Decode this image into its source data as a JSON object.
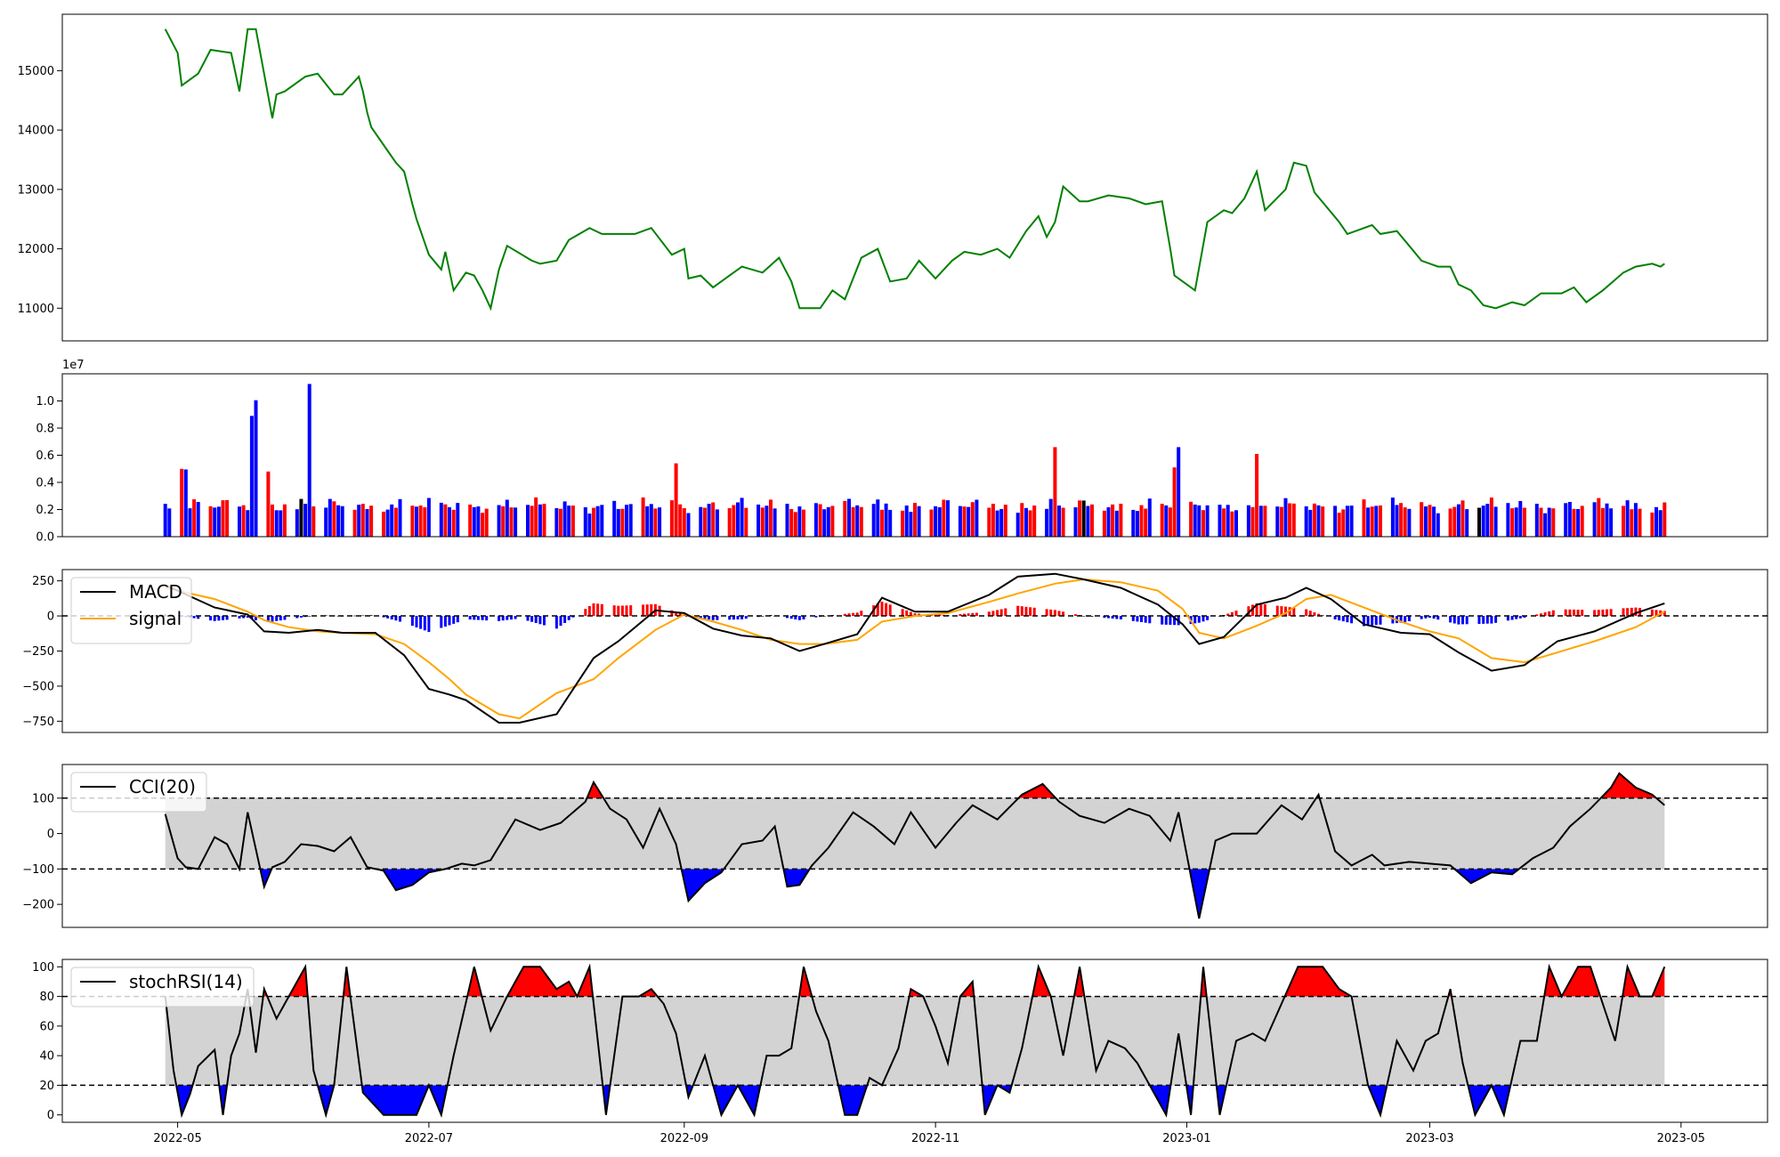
{
  "chart_data": [
    {
      "type": "line",
      "panel": "price",
      "color": "#008000",
      "ylim": [
        10450,
        15950
      ],
      "yticks": [
        11000,
        12000,
        13000,
        14000,
        15000
      ],
      "x": [
        "2022-04-28",
        "2022-05-01",
        "2022-05-02",
        "2022-05-06",
        "2022-05-09",
        "2022-05-14",
        "2022-05-16",
        "2022-05-18",
        "2022-05-20",
        "2022-05-24",
        "2022-05-25",
        "2022-05-27",
        "2022-06-01",
        "2022-06-04",
        "2022-06-08",
        "2022-06-10",
        "2022-06-14",
        "2022-06-15",
        "2022-06-16",
        "2022-06-17",
        "2022-06-21",
        "2022-06-23",
        "2022-06-25",
        "2022-06-27",
        "2022-06-28",
        "2022-07-01",
        "2022-07-04",
        "2022-07-05",
        "2022-07-07",
        "2022-07-10",
        "2022-07-12",
        "2022-07-14",
        "2022-07-16",
        "2022-07-18",
        "2022-07-20",
        "2022-07-26",
        "2022-07-28",
        "2022-08-01",
        "2022-08-04",
        "2022-08-09",
        "2022-08-12",
        "2022-08-16",
        "2022-08-20",
        "2022-08-24",
        "2022-08-29",
        "2022-09-01",
        "2022-09-02",
        "2022-09-05",
        "2022-09-08",
        "2022-09-12",
        "2022-09-15",
        "2022-09-20",
        "2022-09-24",
        "2022-09-27",
        "2022-09-29",
        "2022-10-04",
        "2022-10-07",
        "2022-10-10",
        "2022-10-14",
        "2022-10-18",
        "2022-10-21",
        "2022-10-25",
        "2022-10-28",
        "2022-11-01",
        "2022-11-05",
        "2022-11-08",
        "2022-11-12",
        "2022-11-16",
        "2022-11-19",
        "2022-11-23",
        "2022-11-26",
        "2022-11-28",
        "2022-11-30",
        "2022-12-02",
        "2022-12-06",
        "2022-12-08",
        "2022-12-13",
        "2022-12-18",
        "2022-12-22",
        "2022-12-26",
        "2022-12-28",
        "2022-12-29",
        "2023-01-03",
        "2023-01-06",
        "2023-01-10",
        "2023-01-12",
        "2023-01-15",
        "2023-01-18",
        "2023-01-20",
        "2023-01-25",
        "2023-01-27",
        "2023-01-30",
        "2023-02-01",
        "2023-02-07",
        "2023-02-08",
        "2023-02-09",
        "2023-02-15",
        "2023-02-17",
        "2023-02-21",
        "2023-02-24",
        "2023-02-27",
        "2023-03-03",
        "2023-03-06",
        "2023-03-08",
        "2023-03-11",
        "2023-03-14",
        "2023-03-17",
        "2023-03-21",
        "2023-03-24",
        "2023-03-28",
        "2023-04-02",
        "2023-04-05",
        "2023-04-08",
        "2023-04-12",
        "2023-04-17",
        "2023-04-20",
        "2023-04-24",
        "2023-04-26",
        "2023-04-27"
      ],
      "values": [
        15700,
        15300,
        14750,
        14950,
        15350,
        15300,
        14650,
        15700,
        15700,
        14200,
        14600,
        14650,
        14900,
        14950,
        14600,
        14600,
        14900,
        14650,
        14300,
        14050,
        13650,
        13450,
        13300,
        12750,
        12500,
        11900,
        11650,
        11950,
        11300,
        11600,
        11550,
        11300,
        11000,
        11650,
        12050,
        11800,
        11750,
        11800,
        12150,
        12350,
        12250,
        12250,
        12250,
        12350,
        11900,
        12000,
        11500,
        11550,
        11350,
        11550,
        11700,
        11600,
        11850,
        11450,
        11000,
        11000,
        11300,
        11150,
        11850,
        12000,
        11450,
        11500,
        11800,
        11500,
        11800,
        11950,
        11900,
        12000,
        11850,
        12300,
        12550,
        12200,
        12450,
        13050,
        12800,
        12800,
        12900,
        12850,
        12750,
        12800,
        12000,
        11550,
        11300,
        12450,
        12650,
        12600,
        12850,
        13300,
        12650,
        13000,
        13450,
        13400,
        12950,
        12450,
        12350,
        12250,
        12400,
        12250,
        12300,
        12050,
        11800,
        11700,
        11700,
        11400,
        11300,
        11050,
        11000,
        11100,
        11050,
        11250,
        11250,
        11350,
        11100,
        11300,
        11600,
        11700,
        11750,
        11700,
        11750
      ]
    },
    {
      "type": "bar",
      "panel": "volume",
      "ylim": [
        0,
        12000000
      ],
      "yticks": [
        0.0,
        0.2,
        0.4,
        0.6,
        0.8,
        1.0
      ],
      "ytick_labels": [
        "0.0",
        "0.2",
        "0.4",
        "0.6",
        "0.8",
        "1.0"
      ],
      "offset_label": "1e7",
      "colors": {
        "up": "#ff0000",
        "down": "#0000ff",
        "flat": "#000000"
      },
      "start": "2022-04-28",
      "end": "2023-04-27",
      "spikes": [
        {
          "x": "2022-05-02",
          "value": 5000000,
          "color": "up"
        },
        {
          "x": "2022-05-03",
          "value": 4950000,
          "color": "down"
        },
        {
          "x": "2022-05-19",
          "value": 8900000,
          "color": "down"
        },
        {
          "x": "2022-05-20",
          "value": 10050000,
          "color": "down"
        },
        {
          "x": "2022-05-23",
          "value": 4800000,
          "color": "up"
        },
        {
          "x": "2022-06-02",
          "value": 11250000,
          "color": "down"
        },
        {
          "x": "2022-08-30",
          "value": 5400000,
          "color": "up"
        },
        {
          "x": "2022-11-30",
          "value": 6600000,
          "color": "up"
        },
        {
          "x": "2022-12-29",
          "value": 5100000,
          "color": "up"
        },
        {
          "x": "2022-12-30",
          "value": 6600000,
          "color": "down"
        },
        {
          "x": "2023-01-18",
          "value": 6100000,
          "color": "up"
        }
      ]
    },
    {
      "type": "line",
      "panel": "macd",
      "ylim": [
        -830,
        330
      ],
      "yticks": [
        -750,
        -500,
        -250,
        0,
        250
      ],
      "ytick_labels": [
        "−750",
        "−500",
        "−250",
        "0",
        "250"
      ],
      "legend": [
        {
          "name": "MACD",
          "color": "#000000"
        },
        {
          "name": "signal",
          "color": "#ffa500"
        }
      ],
      "hist_colors": {
        "pos": "#ff0000",
        "neg": "#0000ff",
        "flat": "#000000"
      },
      "x": [
        "2022-04-28",
        "2022-05-10",
        "2022-05-18",
        "2022-05-22",
        "2022-05-28",
        "2022-06-04",
        "2022-06-10",
        "2022-06-18",
        "2022-06-25",
        "2022-07-01",
        "2022-07-06",
        "2022-07-10",
        "2022-07-18",
        "2022-07-23",
        "2022-08-01",
        "2022-08-10",
        "2022-08-16",
        "2022-08-25",
        "2022-09-01",
        "2022-09-08",
        "2022-09-15",
        "2022-09-22",
        "2022-09-29",
        "2022-10-05",
        "2022-10-13",
        "2022-10-19",
        "2022-10-27",
        "2022-11-04",
        "2022-11-14",
        "2022-11-21",
        "2022-11-30",
        "2022-12-07",
        "2022-12-16",
        "2022-12-25",
        "2022-12-31",
        "2023-01-04",
        "2023-01-10",
        "2023-01-18",
        "2023-01-25",
        "2023-01-30",
        "2023-02-05",
        "2023-02-13",
        "2023-02-22",
        "2023-03-01",
        "2023-03-08",
        "2023-03-16",
        "2023-03-24",
        "2023-04-01",
        "2023-04-10",
        "2023-04-20",
        "2023-04-27"
      ],
      "series": [
        {
          "name": "MACD",
          "values": [
            220,
            60,
            10,
            -110,
            -120,
            -100,
            -120,
            -120,
            -280,
            -520,
            -560,
            -600,
            -760,
            -760,
            -700,
            -300,
            -180,
            40,
            20,
            -90,
            -140,
            -160,
            -250,
            -200,
            -130,
            130,
            30,
            30,
            150,
            280,
            300,
            260,
            200,
            80,
            -60,
            -200,
            -150,
            80,
            130,
            200,
            120,
            -60,
            -120,
            -130,
            -260,
            -390,
            -350,
            -180,
            -110,
            20,
            90
          ]
        },
        {
          "name": "signal",
          "values": [
            200,
            120,
            30,
            -30,
            -80,
            -110,
            -120,
            -130,
            -200,
            -330,
            -450,
            -560,
            -700,
            -730,
            -550,
            -450,
            -300,
            -100,
            10,
            -40,
            -100,
            -170,
            -200,
            -200,
            -170,
            -40,
            0,
            20,
            100,
            160,
            230,
            260,
            240,
            180,
            50,
            -120,
            -160,
            -70,
            20,
            120,
            150,
            60,
            -40,
            -110,
            -160,
            -300,
            -330,
            -260,
            -180,
            -80,
            30
          ]
        }
      ]
    },
    {
      "type": "area",
      "panel": "cci",
      "ylim": [
        -265,
        195
      ],
      "yticks": [
        -200,
        -100,
        0,
        100
      ],
      "ytick_labels": [
        "−200",
        "−100",
        "0",
        "100"
      ],
      "thresholds": [
        100,
        -100
      ],
      "legend": [
        {
          "name": "CCI(20)",
          "color": "#000000"
        }
      ],
      "fill_colors": {
        "over": "#ff0000",
        "under": "#0000ff",
        "band": "#d3d3d3"
      },
      "x": [
        "2022-04-28",
        "2022-05-01",
        "2022-05-03",
        "2022-05-06",
        "2022-05-10",
        "2022-05-13",
        "2022-05-16",
        "2022-05-18",
        "2022-05-22",
        "2022-05-24",
        "2022-05-27",
        "2022-05-31",
        "2022-06-04",
        "2022-06-08",
        "2022-06-12",
        "2022-06-16",
        "2022-06-20",
        "2022-06-23",
        "2022-06-27",
        "2022-07-01",
        "2022-07-05",
        "2022-07-09",
        "2022-07-12",
        "2022-07-16",
        "2022-07-22",
        "2022-07-28",
        "2022-08-02",
        "2022-08-08",
        "2022-08-10",
        "2022-08-14",
        "2022-08-18",
        "2022-08-22",
        "2022-08-26",
        "2022-08-30",
        "2022-09-02",
        "2022-09-06",
        "2022-09-10",
        "2022-09-15",
        "2022-09-20",
        "2022-09-23",
        "2022-09-26",
        "2022-09-29",
        "2022-10-02",
        "2022-10-06",
        "2022-10-12",
        "2022-10-17",
        "2022-10-22",
        "2022-10-26",
        "2022-11-01",
        "2022-11-06",
        "2022-11-10",
        "2022-11-16",
        "2022-11-22",
        "2022-11-27",
        "2022-12-01",
        "2022-12-06",
        "2022-12-12",
        "2022-12-18",
        "2022-12-23",
        "2022-12-28",
        "2022-12-30",
        "2023-01-04",
        "2023-01-08",
        "2023-01-12",
        "2023-01-18",
        "2023-01-24",
        "2023-01-29",
        "2023-02-02",
        "2023-02-06",
        "2023-02-10",
        "2023-02-15",
        "2023-02-18",
        "2023-02-24",
        "2023-03-01",
        "2023-03-06",
        "2023-03-11",
        "2023-03-16",
        "2023-03-21",
        "2023-03-26",
        "2023-03-31",
        "2023-04-04",
        "2023-04-09",
        "2023-04-14",
        "2023-04-16",
        "2023-04-20",
        "2023-04-24",
        "2023-04-27"
      ],
      "values": [
        55,
        -70,
        -95,
        -100,
        -10,
        -30,
        -100,
        60,
        -150,
        -95,
        -80,
        -30,
        -35,
        -50,
        -10,
        -95,
        -105,
        -160,
        -145,
        -110,
        -100,
        -85,
        -90,
        -75,
        40,
        10,
        30,
        90,
        145,
        70,
        40,
        -40,
        70,
        -30,
        -190,
        -140,
        -110,
        -30,
        -20,
        20,
        -150,
        -145,
        -90,
        -40,
        60,
        20,
        -30,
        60,
        -40,
        30,
        80,
        40,
        110,
        140,
        90,
        50,
        30,
        70,
        50,
        -20,
        60,
        -240,
        -20,
        0,
        0,
        80,
        40,
        110,
        -50,
        -90,
        -60,
        -90,
        -80,
        -85,
        -90,
        -140,
        -110,
        -115,
        -70,
        -40,
        20,
        70,
        130,
        170,
        130,
        110,
        80
      ]
    },
    {
      "type": "area",
      "panel": "stochrsi",
      "ylim": [
        -5,
        105
      ],
      "yticks": [
        0,
        20,
        40,
        60,
        80,
        100
      ],
      "thresholds": [
        80,
        20
      ],
      "legend": [
        {
          "name": "stochRSI(14)",
          "color": "#000000"
        }
      ],
      "fill_colors": {
        "over": "#ff0000",
        "under": "#0000ff",
        "band": "#d3d3d3"
      },
      "x": [
        "2022-04-28",
        "2022-04-30",
        "2022-05-02",
        "2022-05-04",
        "2022-05-06",
        "2022-05-10",
        "2022-05-12",
        "2022-05-14",
        "2022-05-16",
        "2022-05-18",
        "2022-05-20",
        "2022-05-22",
        "2022-05-25",
        "2022-05-28",
        "2022-06-01",
        "2022-06-03",
        "2022-06-06",
        "2022-06-08",
        "2022-06-11",
        "2022-06-15",
        "2022-06-20",
        "2022-06-24",
        "2022-06-28",
        "2022-07-01",
        "2022-07-04",
        "2022-07-07",
        "2022-07-12",
        "2022-07-16",
        "2022-07-20",
        "2022-07-24",
        "2022-07-28",
        "2022-08-01",
        "2022-08-04",
        "2022-08-06",
        "2022-08-09",
        "2022-08-13",
        "2022-08-17",
        "2022-08-21",
        "2022-08-24",
        "2022-08-27",
        "2022-08-30",
        "2022-09-02",
        "2022-09-06",
        "2022-09-10",
        "2022-09-14",
        "2022-09-18",
        "2022-09-21",
        "2022-09-24",
        "2022-09-27",
        "2022-09-30",
        "2022-10-03",
        "2022-10-06",
        "2022-10-10",
        "2022-10-13",
        "2022-10-16",
        "2022-10-19",
        "2022-10-23",
        "2022-10-26",
        "2022-10-29",
        "2022-11-01",
        "2022-11-04",
        "2022-11-07",
        "2022-11-10",
        "2022-11-13",
        "2022-11-16",
        "2022-11-19",
        "2022-11-22",
        "2022-11-26",
        "2022-11-29",
        "2022-12-02",
        "2022-12-06",
        "2022-12-10",
        "2022-12-13",
        "2022-12-17",
        "2022-12-20",
        "2022-12-23",
        "2022-12-27",
        "2022-12-30",
        "2023-01-02",
        "2023-01-05",
        "2023-01-09",
        "2023-01-13",
        "2023-01-17",
        "2023-01-20",
        "2023-01-24",
        "2023-01-28",
        "2023-01-31",
        "2023-02-03",
        "2023-02-07",
        "2023-02-10",
        "2023-02-14",
        "2023-02-17",
        "2023-02-21",
        "2023-02-25",
        "2023-02-28",
        "2023-03-03",
        "2023-03-06",
        "2023-03-09",
        "2023-03-12",
        "2023-03-16",
        "2023-03-19",
        "2023-03-23",
        "2023-03-27",
        "2023-03-30",
        "2023-04-02",
        "2023-04-06",
        "2023-04-09",
        "2023-04-12",
        "2023-04-15",
        "2023-04-18",
        "2023-04-21",
        "2023-04-24",
        "2023-04-27"
      ],
      "values": [
        80,
        30,
        0,
        14,
        33,
        44,
        0,
        40,
        55,
        85,
        42,
        85,
        65,
        80,
        100,
        30,
        0,
        20,
        100,
        15,
        0,
        0,
        0,
        20,
        0,
        40,
        100,
        57,
        80,
        100,
        100,
        85,
        90,
        80,
        100,
        0,
        80,
        80,
        85,
        75,
        55,
        12,
        40,
        0,
        20,
        0,
        40,
        40,
        45,
        100,
        70,
        50,
        0,
        0,
        25,
        20,
        45,
        85,
        80,
        60,
        35,
        80,
        90,
        0,
        20,
        15,
        45,
        100,
        80,
        40,
        100,
        30,
        50,
        45,
        35,
        20,
        0,
        55,
        0,
        100,
        0,
        50,
        55,
        50,
        75,
        100,
        100,
        100,
        85,
        80,
        20,
        0,
        50,
        30,
        50,
        55,
        85,
        35,
        0,
        20,
        0,
        50,
        50,
        100,
        80,
        100,
        100,
        75,
        50,
        100,
        80,
        80,
        100
      ]
    }
  ],
  "x_axis": {
    "ticks": [
      "2022-05-01",
      "2022-07-01",
      "2022-09-01",
      "2022-11-01",
      "2023-01-01",
      "2023-03-01",
      "2023-05-01"
    ],
    "tick_labels": [
      "2022-05",
      "2022-07",
      "2022-09",
      "2022-11",
      "2023-01",
      "2023-03",
      "2023-05"
    ],
    "xlim": [
      "2022-04-03",
      "2023-05-22"
    ]
  }
}
